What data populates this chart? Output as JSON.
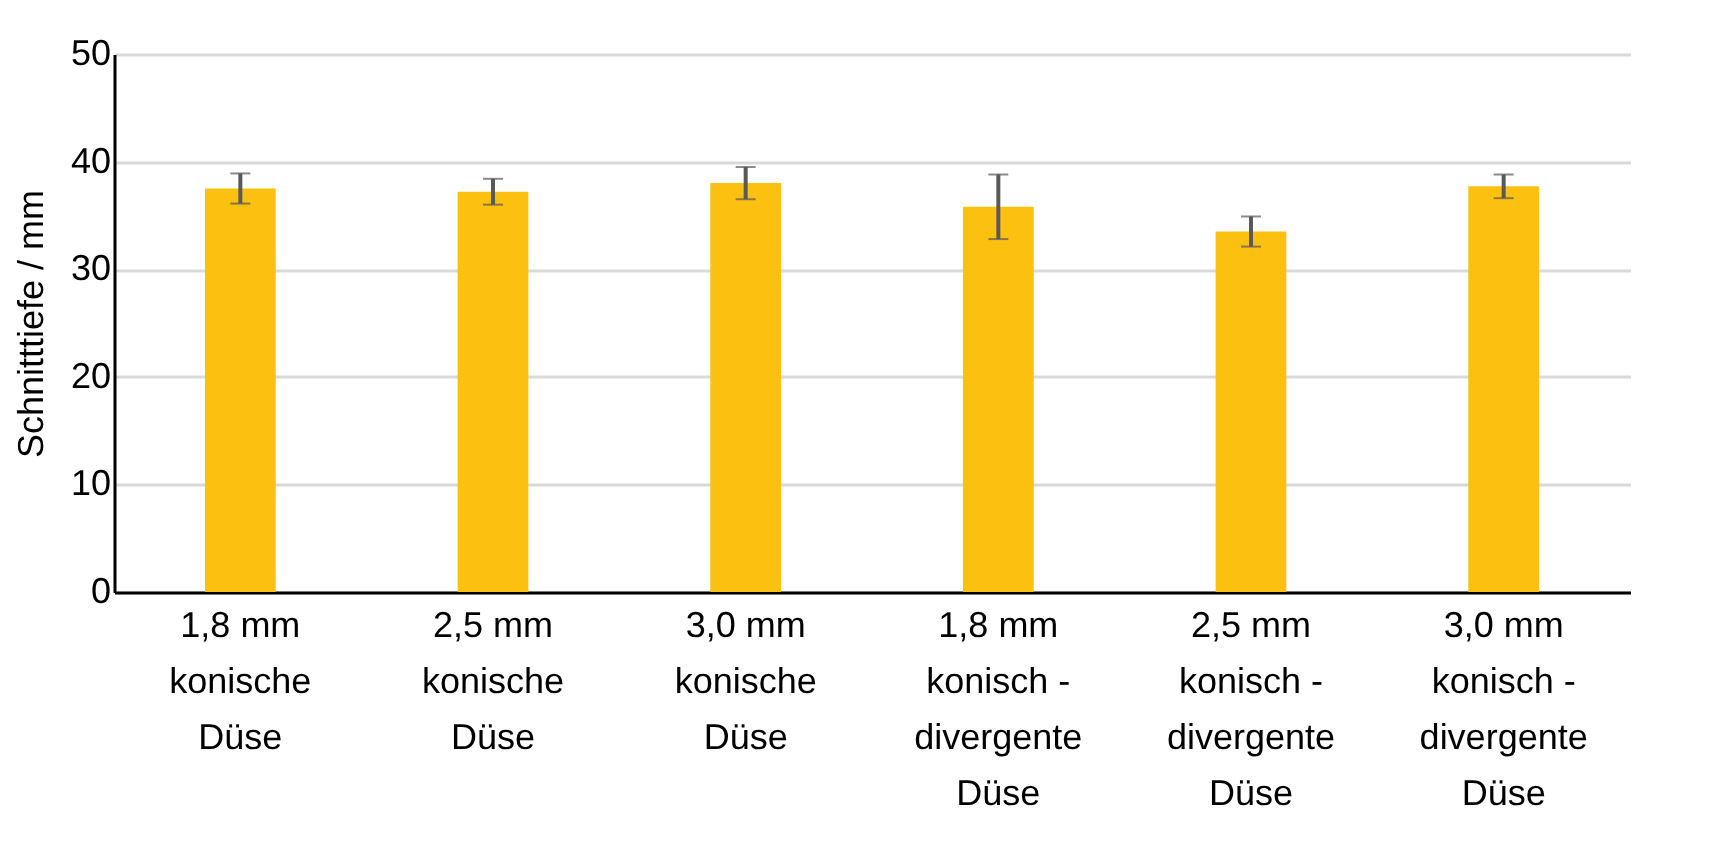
{
  "chart_data": {
    "type": "bar",
    "ylabel": "Schnitttiefe / mm",
    "categories": [
      "1,8 mm\nkonische\nDüse",
      "2,5 mm\nkonische\nDüse",
      "3,0 mm\nkonische\nDüse",
      "1,8 mm\nkonisch -\ndivergente\nDüse",
      "2,5 mm\nkonisch -\ndivergente\nDüse",
      "3,0 mm\nkonisch -\ndivergente\nDüse"
    ],
    "values": [
      37.5,
      37.2,
      38.0,
      35.8,
      33.5,
      37.7
    ],
    "errors": [
      1.4,
      1.2,
      1.5,
      3.0,
      1.4,
      1.1
    ],
    "color": "#fcc010",
    "ylim": [
      0,
      50
    ],
    "yticks": [
      0,
      10,
      20,
      30,
      40,
      50
    ],
    "grid": "y"
  }
}
